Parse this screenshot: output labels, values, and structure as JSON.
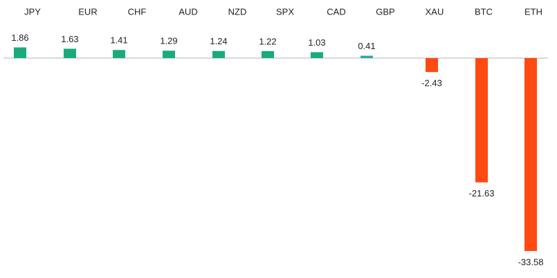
{
  "chart_data": {
    "type": "bar",
    "categories": [
      "JPY",
      "EUR",
      "CHF",
      "AUD",
      "NZD",
      "SPX",
      "CAD",
      "GBP",
      "XAU",
      "BTC",
      "ETH"
    ],
    "values": [
      1.86,
      1.63,
      1.41,
      1.29,
      1.24,
      1.22,
      1.03,
      0.41,
      -2.43,
      -21.63,
      -33.58
    ],
    "colors": [
      "#1aab7b",
      "#1aab7b",
      "#1aab7b",
      "#1aab7b",
      "#1aab7b",
      "#1aab7b",
      "#1aab7b",
      "#2ea6b0",
      "#ff4a12",
      "#ff4a12",
      "#ff4a12"
    ]
  }
}
